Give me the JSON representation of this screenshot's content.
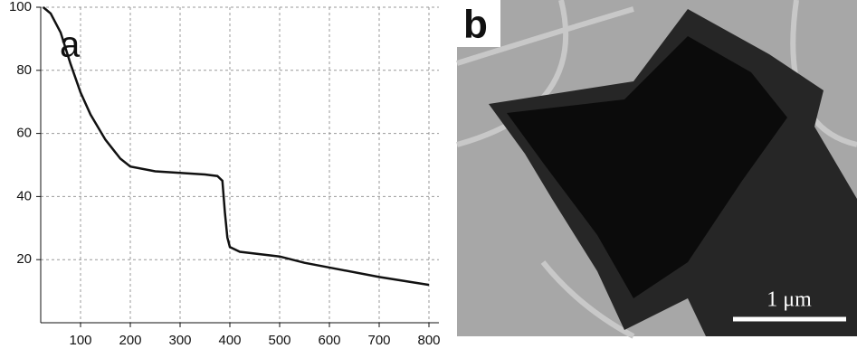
{
  "chart_data": {
    "type": "line",
    "annotations": [
      "a"
    ],
    "x": [
      25,
      40,
      60,
      80,
      100,
      120,
      150,
      180,
      200,
      250,
      300,
      350,
      375,
      385,
      390,
      395,
      400,
      420,
      500,
      550,
      600,
      700,
      800
    ],
    "series": [
      {
        "color": "#111111",
        "values": [
          100,
          98,
          92,
          82,
          73,
          66,
          58,
          52,
          49.5,
          48,
          47.5,
          47,
          46.5,
          45,
          35,
          27,
          24,
          22.5,
          21,
          19,
          17.5,
          14.5,
          12
        ]
      }
    ],
    "xlim": [
      20,
      820
    ],
    "xticks": [
      100,
      200,
      300,
      400,
      500,
      600,
      700,
      800
    ],
    "ylim": [
      0,
      100
    ],
    "yticks": [
      20,
      40,
      60,
      80,
      100
    ],
    "grid": true
  },
  "image_panel": {
    "label": "b",
    "scale_bar": "1 μm"
  }
}
